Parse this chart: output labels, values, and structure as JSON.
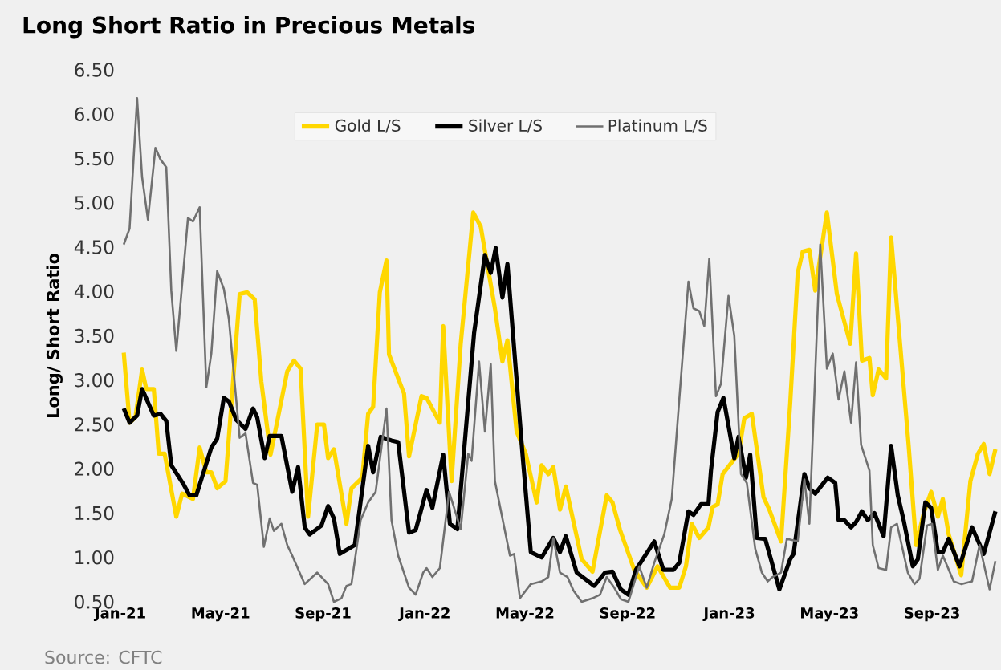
{
  "chart_data": {
    "type": "line",
    "title": "Long Short Ratio in Precious Metals",
    "ylabel": "Long/ Short Ratio",
    "annotations": [
      "Source: CFTC"
    ],
    "xlim": [
      "2021-01-01",
      "2023-11-16"
    ],
    "xticks": [
      {
        "value": "2021-01-01",
        "label": "Jan-21"
      },
      {
        "value": "2021-05-01",
        "label": "May-21"
      },
      {
        "value": "2021-09-01",
        "label": "Sep-21"
      },
      {
        "value": "2022-01-01",
        "label": "Jan-22"
      },
      {
        "value": "2022-05-01",
        "label": "May-22"
      },
      {
        "value": "2022-09-01",
        "label": "Sep-22"
      },
      {
        "value": "2023-01-01",
        "label": "Jan-23"
      },
      {
        "value": "2023-05-01",
        "label": "May-23"
      },
      {
        "value": "2023-09-01",
        "label": "Sep-23"
      }
    ],
    "ylim": [
      0.5,
      6.5
    ],
    "yticks": [
      {
        "value": 0.5,
        "label": "0.50"
      },
      {
        "value": 1,
        "label": "1.00"
      },
      {
        "value": 1.5,
        "label": "1.50"
      },
      {
        "value": 2,
        "label": "2.00"
      },
      {
        "value": 2.5,
        "label": "2.50"
      },
      {
        "value": 3,
        "label": "3.00"
      },
      {
        "value": 3.5,
        "label": "3.50"
      },
      {
        "value": 4,
        "label": "4.00"
      },
      {
        "value": 4.5,
        "label": "4.50"
      },
      {
        "value": 5,
        "label": "5.00"
      },
      {
        "value": 5.5,
        "label": "5.50"
      },
      {
        "value": 6,
        "label": "6.00"
      },
      {
        "value": 6.5,
        "label": "6.50"
      }
    ],
    "legend": "top",
    "series": [
      {
        "name": "Gold L/S",
        "color": "#ffd700",
        "x": [
          "2021-01-05",
          "2021-01-12",
          "2021-01-19",
          "2021-01-27",
          "2021-02-01",
          "2021-02-10",
          "2021-02-16",
          "2021-02-23",
          "2021-03-09",
          "2021-03-16",
          "2021-03-29",
          "2021-04-06",
          "2021-04-14",
          "2021-04-20",
          "2021-04-27",
          "2021-05-07",
          "2021-05-24",
          "2021-06-02",
          "2021-06-11",
          "2021-06-19",
          "2021-06-30",
          "2021-07-20",
          "2021-07-28",
          "2021-08-05",
          "2021-08-14",
          "2021-08-25",
          "2021-09-02",
          "2021-09-07",
          "2021-09-14",
          "2021-09-29",
          "2021-10-05",
          "2021-10-18",
          "2021-10-25",
          "2021-10-31",
          "2021-11-08",
          "2021-11-16",
          "2021-11-19",
          "2021-12-07",
          "2021-12-13",
          "2021-12-28",
          "2022-01-03",
          "2022-01-19",
          "2022-01-23",
          "2022-02-02",
          "2022-02-13",
          "2022-02-28",
          "2022-03-09",
          "2022-03-26",
          "2022-04-04",
          "2022-04-10",
          "2022-04-21",
          "2022-05-02",
          "2022-05-15",
          "2022-05-21",
          "2022-05-29",
          "2022-06-04",
          "2022-06-12",
          "2022-06-19",
          "2022-07-08",
          "2022-07-21",
          "2022-08-07",
          "2022-08-14",
          "2022-08-23",
          "2022-09-09",
          "2022-09-24",
          "2022-10-07",
          "2022-10-22",
          "2022-11-02",
          "2022-11-10",
          "2022-11-17",
          "2022-11-26",
          "2022-12-07",
          "2022-12-12",
          "2022-12-18",
          "2022-12-24",
          "2023-01-12",
          "2023-01-19",
          "2023-01-28",
          "2023-02-11",
          "2023-02-18",
          "2023-03-04",
          "2023-03-15",
          "2023-03-24",
          "2023-03-30",
          "2023-04-07",
          "2023-04-14",
          "2023-04-28",
          "2023-05-10",
          "2023-05-26",
          "2023-06-02",
          "2023-06-09",
          "2023-06-18",
          "2023-06-22",
          "2023-06-29",
          "2023-07-08",
          "2023-07-14",
          "2023-07-25",
          "2023-08-04",
          "2023-08-13",
          "2023-08-22",
          "2023-08-31",
          "2023-09-08",
          "2023-09-14",
          "2023-09-21",
          "2023-10-06",
          "2023-10-17",
          "2023-10-26",
          "2023-11-02",
          "2023-11-09",
          "2023-11-16"
        ],
        "values": [
          3.31,
          2.52,
          2.58,
          3.12,
          2.9,
          2.9,
          2.17,
          2.17,
          1.46,
          1.72,
          1.66,
          2.24,
          1.96,
          1.96,
          1.78,
          1.86,
          3.97,
          3.99,
          3.91,
          2.98,
          2.16,
          3.1,
          3.22,
          3.13,
          1.46,
          2.5,
          2.5,
          2.12,
          2.22,
          1.38,
          1.78,
          1.9,
          2.62,
          2.7,
          3.99,
          4.35,
          3.29,
          2.85,
          2.14,
          2.82,
          2.8,
          2.52,
          3.61,
          1.86,
          3.41,
          4.89,
          4.73,
          3.81,
          3.21,
          3.45,
          2.42,
          2.17,
          1.62,
          2.04,
          1.94,
          2.02,
          1.54,
          1.8,
          0.98,
          0.84,
          1.7,
          1.62,
          1.31,
          0.86,
          0.66,
          0.9,
          0.66,
          0.66,
          0.9,
          1.38,
          1.22,
          1.34,
          1.57,
          1.6,
          1.94,
          2.17,
          2.57,
          2.62,
          1.68,
          1.54,
          1.18,
          2.74,
          4.21,
          4.45,
          4.47,
          4.01,
          4.89,
          3.97,
          3.41,
          4.43,
          3.22,
          3.25,
          2.83,
          3.12,
          3.02,
          4.61,
          3.38,
          2.26,
          1.14,
          1.5,
          1.74,
          1.46,
          1.66,
          1.26,
          0.8,
          1.86,
          2.17,
          2.28,
          1.94,
          2.22
        ]
      },
      {
        "name": "Silver L/S",
        "color": "#000000",
        "x": [
          "2021-01-05",
          "2021-01-12",
          "2021-01-21",
          "2021-01-27",
          "2021-02-10",
          "2021-02-18",
          "2021-02-25",
          "2021-03-03",
          "2021-03-18",
          "2021-03-25",
          "2021-04-02",
          "2021-04-20",
          "2021-04-27",
          "2021-05-05",
          "2021-05-11",
          "2021-05-20",
          "2021-05-31",
          "2021-06-09",
          "2021-06-14",
          "2021-06-23",
          "2021-06-29",
          "2021-07-13",
          "2021-07-26",
          "2021-08-02",
          "2021-08-10",
          "2021-08-16",
          "2021-08-30",
          "2021-09-07",
          "2021-09-14",
          "2021-09-21",
          "2021-10-09",
          "2021-10-25",
          "2021-10-31",
          "2021-11-09",
          "2021-11-22",
          "2021-11-30",
          "2021-12-13",
          "2021-12-21",
          "2022-01-03",
          "2022-01-10",
          "2022-01-23",
          "2022-01-31",
          "2022-02-09",
          "2022-03-01",
          "2022-03-14",
          "2022-03-21",
          "2022-03-27",
          "2022-04-04",
          "2022-04-10",
          "2022-04-28",
          "2022-05-08",
          "2022-05-21",
          "2022-06-04",
          "2022-06-12",
          "2022-06-19",
          "2022-07-02",
          "2022-07-23",
          "2022-08-05",
          "2022-08-14",
          "2022-08-24",
          "2022-09-02",
          "2022-09-11",
          "2022-10-03",
          "2022-10-14",
          "2022-10-26",
          "2022-11-02",
          "2022-11-13",
          "2022-11-19",
          "2022-11-28",
          "2022-12-07",
          "2022-12-10",
          "2022-12-18",
          "2022-12-25",
          "2023-01-07",
          "2023-01-12",
          "2023-01-21",
          "2023-01-26",
          "2023-02-03",
          "2023-02-13",
          "2023-03-02",
          "2023-03-15",
          "2023-03-19",
          "2023-04-01",
          "2023-04-07",
          "2023-04-14",
          "2023-04-29",
          "2023-05-08",
          "2023-05-12",
          "2023-05-19",
          "2023-05-27",
          "2023-06-02",
          "2023-06-09",
          "2023-06-16",
          "2023-06-24",
          "2023-07-05",
          "2023-07-14",
          "2023-07-22",
          "2023-07-29",
          "2023-08-09",
          "2023-08-15",
          "2023-08-24",
          "2023-08-31",
          "2023-09-08",
          "2023-09-14",
          "2023-09-21",
          "2023-10-04",
          "2023-10-19",
          "2023-11-02",
          "2023-11-16"
        ],
        "values": [
          2.68,
          2.52,
          2.6,
          2.9,
          2.6,
          2.62,
          2.54,
          2.04,
          1.82,
          1.7,
          1.7,
          2.24,
          2.34,
          2.8,
          2.76,
          2.55,
          2.45,
          2.68,
          2.58,
          2.12,
          2.37,
          2.37,
          1.74,
          2.02,
          1.34,
          1.26,
          1.36,
          1.58,
          1.44,
          1.04,
          1.14,
          2.26,
          1.96,
          2.36,
          2.32,
          2.3,
          1.28,
          1.31,
          1.76,
          1.56,
          2.16,
          1.38,
          1.32,
          3.53,
          4.41,
          4.21,
          4.49,
          3.93,
          4.31,
          2.17,
          1.06,
          1.0,
          1.22,
          1.06,
          1.24,
          0.83,
          0.68,
          0.83,
          0.84,
          0.64,
          0.58,
          0.86,
          1.18,
          0.86,
          0.86,
          0.94,
          1.52,
          1.48,
          1.6,
          1.6,
          1.98,
          2.64,
          2.8,
          2.12,
          2.36,
          1.9,
          2.16,
          1.22,
          1.21,
          0.64,
          0.98,
          1.04,
          1.94,
          1.78,
          1.72,
          1.9,
          1.84,
          1.42,
          1.42,
          1.34,
          1.4,
          1.52,
          1.42,
          1.5,
          1.24,
          2.26,
          1.7,
          1.42,
          0.9,
          0.98,
          1.62,
          1.56,
          1.06,
          1.06,
          1.21,
          0.9,
          1.34,
          1.04,
          1.52
        ]
      },
      {
        "name": "Platinum L/S",
        "color": "#707070",
        "x": [
          "2021-01-05",
          "2021-01-12",
          "2021-01-21",
          "2021-01-27",
          "2021-02-03",
          "2021-02-12",
          "2021-02-18",
          "2021-02-25",
          "2021-03-03",
          "2021-03-09",
          "2021-03-23",
          "2021-03-29",
          "2021-04-06",
          "2021-04-14",
          "2021-04-20",
          "2021-04-27",
          "2021-05-05",
          "2021-05-11",
          "2021-05-24",
          "2021-05-31",
          "2021-06-09",
          "2021-06-14",
          "2021-06-22",
          "2021-06-29",
          "2021-07-04",
          "2021-07-13",
          "2021-07-20",
          "2021-07-26",
          "2021-08-10",
          "2021-08-25",
          "2021-09-07",
          "2021-09-14",
          "2021-09-23",
          "2021-09-29",
          "2021-10-05",
          "2021-10-16",
          "2021-10-25",
          "2021-11-03",
          "2021-11-16",
          "2021-11-22",
          "2021-11-30",
          "2021-12-13",
          "2021-12-21",
          "2021-12-30",
          "2022-01-03",
          "2022-01-10",
          "2022-01-19",
          "2022-01-30",
          "2022-02-13",
          "2022-02-22",
          "2022-02-26",
          "2022-03-07",
          "2022-03-14",
          "2022-03-21",
          "2022-03-26",
          "2022-04-13",
          "2022-04-18",
          "2022-04-25",
          "2022-05-08",
          "2022-05-21",
          "2022-05-29",
          "2022-06-04",
          "2022-06-12",
          "2022-06-21",
          "2022-06-28",
          "2022-07-08",
          "2022-07-21",
          "2022-07-30",
          "2022-08-07",
          "2022-08-16",
          "2022-08-24",
          "2022-09-02",
          "2022-09-15",
          "2022-09-24",
          "2022-10-03",
          "2022-10-15",
          "2022-10-24",
          "2022-11-02",
          "2022-11-13",
          "2022-11-19",
          "2022-11-26",
          "2022-12-02",
          "2022-12-08",
          "2022-12-16",
          "2022-12-22",
          "2022-12-31",
          "2023-01-07",
          "2023-01-15",
          "2023-01-22",
          "2023-02-01",
          "2023-02-09",
          "2023-02-16",
          "2023-02-22",
          "2023-03-04",
          "2023-03-11",
          "2023-03-24",
          "2023-04-01",
          "2023-04-07",
          "2023-04-20",
          "2023-04-28",
          "2023-05-05",
          "2023-05-12",
          "2023-05-19",
          "2023-05-27",
          "2023-06-02",
          "2023-06-08",
          "2023-06-18",
          "2023-06-22",
          "2023-06-29",
          "2023-07-08",
          "2023-07-14",
          "2023-07-21",
          "2023-08-03",
          "2023-08-11",
          "2023-08-17",
          "2023-08-26",
          "2023-09-01",
          "2023-09-08",
          "2023-09-14",
          "2023-09-27",
          "2023-10-06",
          "2023-10-19",
          "2023-10-28",
          "2023-11-09",
          "2023-11-16"
        ],
        "values": [
          4.53,
          4.71,
          6.18,
          5.29,
          4.81,
          5.62,
          5.49,
          5.4,
          4.01,
          3.33,
          4.83,
          4.79,
          4.95,
          2.92,
          3.3,
          4.23,
          4.03,
          3.69,
          2.35,
          2.4,
          1.84,
          1.82,
          1.12,
          1.44,
          1.3,
          1.38,
          1.14,
          1.02,
          0.7,
          0.83,
          0.7,
          0.5,
          0.54,
          0.68,
          0.7,
          1.42,
          1.62,
          1.74,
          2.68,
          1.42,
          1.02,
          0.66,
          0.58,
          0.83,
          0.88,
          0.78,
          0.88,
          1.74,
          1.32,
          2.17,
          2.09,
          3.21,
          2.42,
          3.18,
          1.86,
          1.02,
          1.04,
          0.54,
          0.7,
          0.73,
          0.78,
          1.22,
          0.83,
          0.78,
          0.63,
          0.5,
          0.54,
          0.58,
          0.78,
          0.66,
          0.53,
          0.5,
          0.9,
          0.66,
          0.94,
          1.26,
          1.66,
          2.78,
          4.11,
          3.81,
          3.78,
          3.61,
          4.37,
          2.82,
          2.96,
          3.95,
          3.5,
          1.94,
          1.84,
          1.1,
          0.83,
          0.73,
          0.78,
          0.83,
          1.21,
          1.18,
          1.88,
          1.38,
          4.53,
          3.13,
          3.3,
          2.78,
          3.1,
          2.52,
          3.2,
          2.27,
          1.98,
          1.14,
          0.88,
          0.86,
          1.34,
          1.38,
          0.83,
          0.7,
          0.76,
          1.36,
          1.38,
          0.86,
          1.02,
          0.73,
          0.7,
          0.73,
          1.14,
          0.64,
          0.96
        ]
      }
    ]
  }
}
